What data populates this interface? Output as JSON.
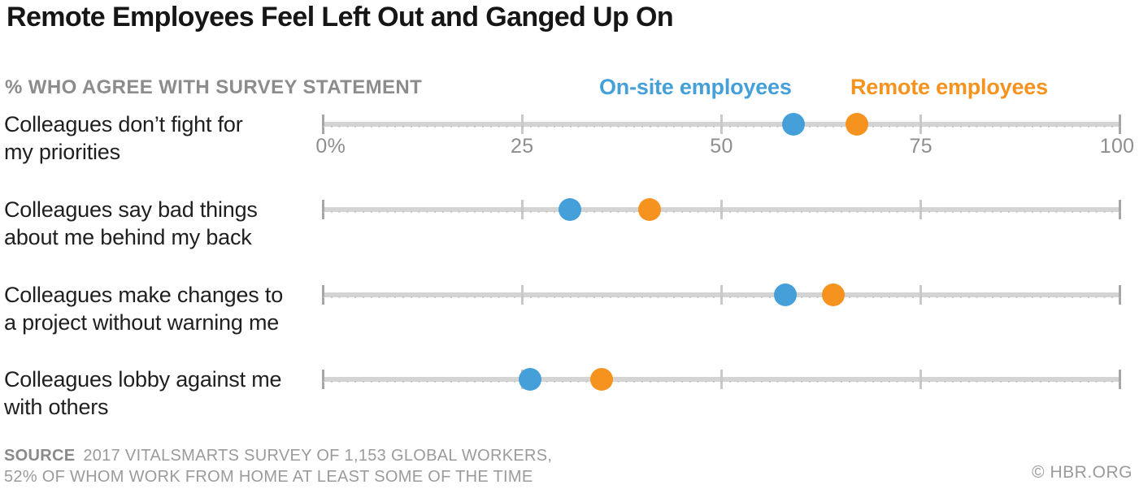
{
  "title": "Remote Employees Feel Left Out and Ganged Up On",
  "subtitle": "% WHO AGREE WITH SURVEY STATEMENT",
  "legend": [
    {
      "label": "On-site employees",
      "color": "#45a0d9"
    },
    {
      "label": "Remote employees",
      "color": "#f6921e"
    }
  ],
  "axis": {
    "ticks": [
      "0%",
      "25",
      "50",
      "75",
      "100"
    ],
    "min": 0,
    "max": 100
  },
  "rows": [
    {
      "lines": [
        "Colleagues don’t fight for",
        "my priorities"
      ],
      "onsite": 59,
      "remote": 67
    },
    {
      "lines": [
        "Colleagues say bad things",
        "about me behind my back"
      ],
      "onsite": 31,
      "remote": 41
    },
    {
      "lines": [
        "Colleagues make changes to",
        "a project without warning me"
      ],
      "onsite": 58,
      "remote": 64
    },
    {
      "lines": [
        "Colleagues lobby against me",
        "with others"
      ],
      "onsite": 26,
      "remote": 35
    }
  ],
  "chart_data": {
    "type": "scatter",
    "subtype": "dot-plot-dumbbell",
    "title": "Remote Employees Feel Left Out and Ganged Up On",
    "xlabel": "% WHO AGREE WITH SURVEY STATEMENT",
    "ylabel": "",
    "categories": [
      "Colleagues don’t fight for my priorities",
      "Colleagues say bad things about me behind my back",
      "Colleagues make changes to a project without warning me",
      "Colleagues lobby against me with others"
    ],
    "series": [
      {
        "name": "On-site employees",
        "color": "#45a0d9",
        "values": [
          59,
          31,
          58,
          26
        ]
      },
      {
        "name": "Remote employees",
        "color": "#f6921e",
        "values": [
          67,
          41,
          64,
          35
        ]
      }
    ],
    "xlim": [
      0,
      100
    ],
    "x_tick_labels": [
      "0%",
      "25",
      "50",
      "75",
      "100"
    ],
    "grid": false,
    "legend_position": "top-right"
  },
  "footer": {
    "source_label": "SOURCE",
    "source_line1": "2017 VITALSMARTS SURVEY OF 1,153 GLOBAL WORKERS,",
    "source_line2": "52% OF WHOM WORK FROM HOME AT LEAST SOME OF THE TIME",
    "credit": "© HBR.ORG"
  }
}
